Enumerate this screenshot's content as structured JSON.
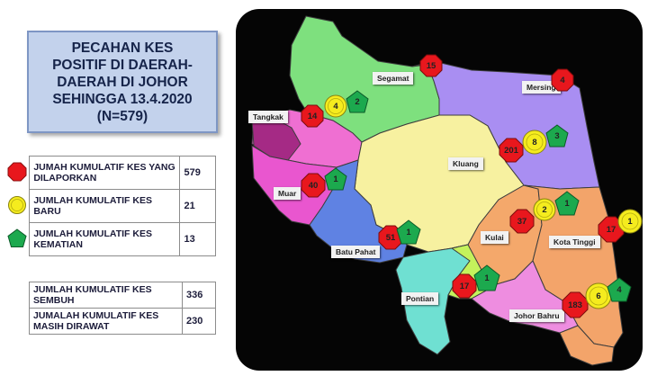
{
  "title": {
    "line1": "PECAHAN KES",
    "line2": "POSITIF DI DAERAH-",
    "line3": "DAERAH DI JOHOR",
    "line4": "SEHINGGA 13.4.2020",
    "line5": "(N=579)"
  },
  "legend": {
    "positive_label": "JUMAH KUMULATIF KES YANG DILAPORKAN",
    "positive_value": "579",
    "new_label": "JUMLAH KUMULATIF KES BARU",
    "new_value": "21",
    "death_label": "JUMLAH KUMULATIF KES KEMATIAN",
    "death_value": "13",
    "recovered_label": "JUMLAH KUMULATIF KES SEMBUH",
    "recovered_value": "336",
    "treated_label": "JUMALAH KUMULATIF KES MASIH DIRAWAT",
    "treated_value": "230"
  },
  "colors": {
    "positive": "#e8171d",
    "new": "#f5ec1e",
    "death": "#1ca94e",
    "title_bg": "#c3d2ec"
  },
  "districts": {
    "segamat": {
      "name": "Segamat",
      "positive": "15"
    },
    "mersing": {
      "name": "Mersing",
      "positive": "4"
    },
    "tangkak": {
      "name": "Tangkak",
      "positive": "14",
      "new": "4",
      "death": "2"
    },
    "kluang": {
      "name": "Kluang",
      "positive": "201",
      "new": "8",
      "death": "3"
    },
    "muar": {
      "name": "Muar",
      "positive": "40",
      "death": "1"
    },
    "kulai": {
      "name": "Kulai",
      "positive": "37",
      "new": "2",
      "death": "1"
    },
    "kota_tinggi": {
      "name": "Kota Tinggi",
      "positive": "17",
      "new": "1"
    },
    "batu_pahat": {
      "name": "Batu Pahat",
      "positive": "51",
      "death": "1"
    },
    "pontian": {
      "name": "Pontian",
      "positive": "17",
      "death": "1"
    },
    "johor_bahru": {
      "name": "Johor Bahru",
      "positive": "183",
      "new": "6",
      "death": "4"
    }
  }
}
